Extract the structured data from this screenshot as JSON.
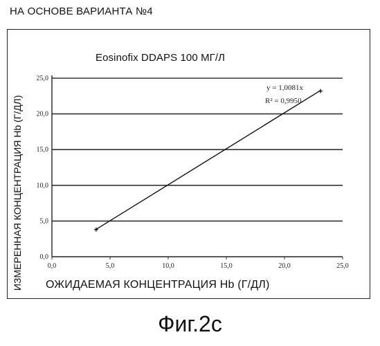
{
  "page": {
    "heading": "НА ОСНОВЕ ВАРИАНТА №4",
    "caption": "Фиг.2с"
  },
  "chart_data": {
    "type": "scatter",
    "title": "Eosinofix DDAPS 100 МГ/Л",
    "xlabel": "ОЖИДАЕМАЯ КОНЦЕНТРАЦИЯ Hb (Г/ДЛ)",
    "ylabel": "ИЗМЕРЕННАЯ КОНЦЕНТРАЦИЯ Hb (Г/ДЛ)",
    "xlim": [
      0,
      25
    ],
    "ylim": [
      0,
      25
    ],
    "x_ticks": [
      "0,0",
      "5,0",
      "10,0",
      "15,0",
      "20,0",
      "25,0"
    ],
    "y_ticks": [
      "0,0",
      "5,0",
      "10,0",
      "15,0",
      "20,0",
      "25,0"
    ],
    "grid": "horizontal",
    "series": [
      {
        "points": [
          {
            "x": 3.8,
            "y": 3.8
          },
          {
            "x": 23.1,
            "y": 23.2
          }
        ],
        "trendline": {
          "slope": 1.0081,
          "intercept": 0
        }
      }
    ],
    "annotations": {
      "equation": "y = 1,0081x",
      "r2": "R² = 0,9950"
    }
  }
}
